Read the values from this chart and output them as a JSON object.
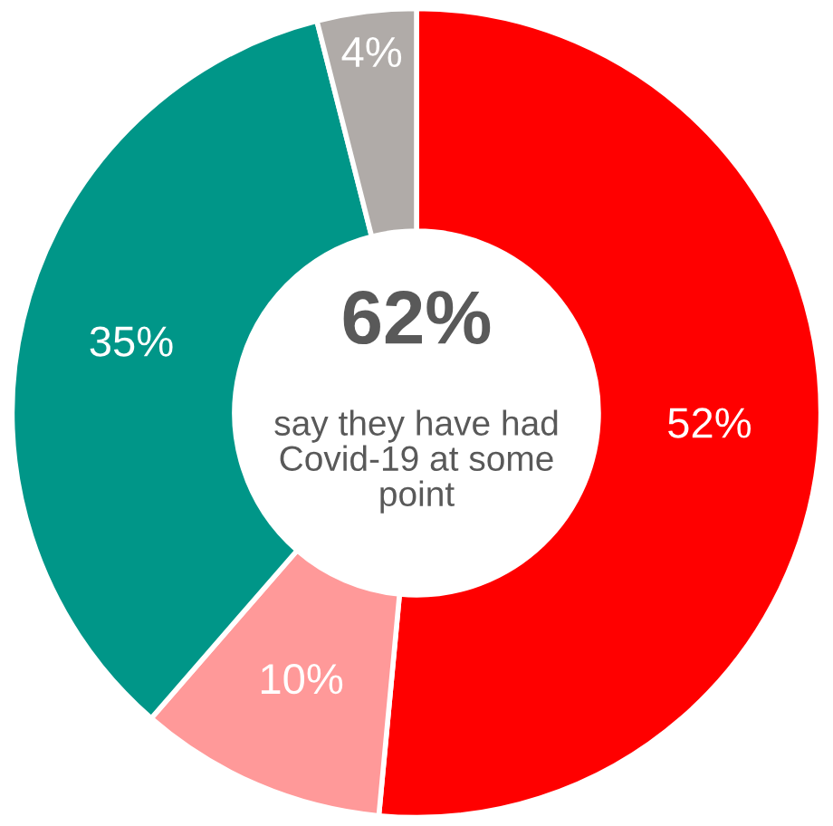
{
  "chart_data": {
    "type": "donut",
    "categories": [
      null,
      null,
      null,
      null
    ],
    "values": [
      52,
      10,
      35,
      4
    ],
    "colors": [
      "#ff0000",
      "#ff9999",
      "#009688",
      "#b0aba8"
    ],
    "value_labels": [
      "52%",
      "10%",
      "35%",
      "4%"
    ],
    "annotations": [
      "62%",
      "say they have had\nCovid-19 at some\npoint"
    ]
  }
}
